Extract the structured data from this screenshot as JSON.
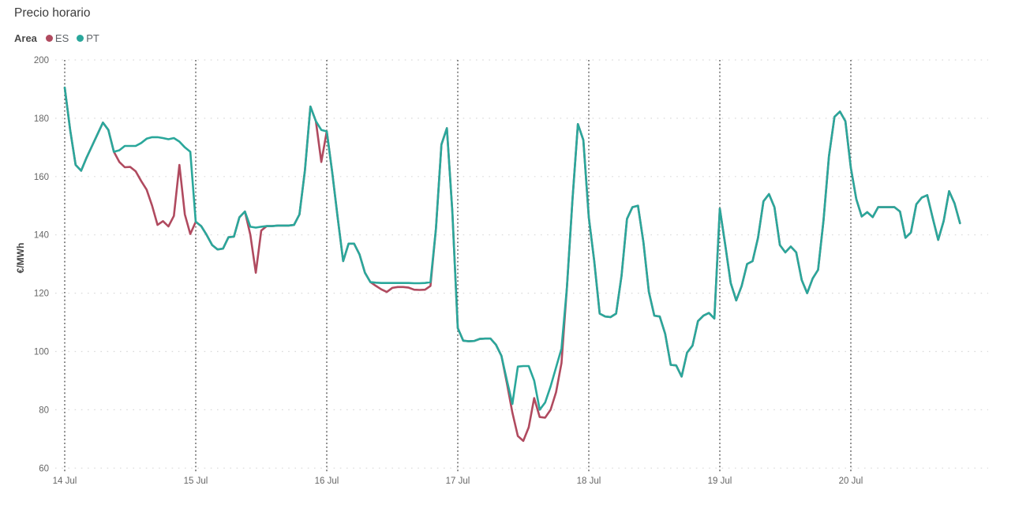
{
  "title": "Precio horario",
  "legend": {
    "label": "Area",
    "items": [
      {
        "name": "ES",
        "color": "#b04a5f"
      },
      {
        "name": "PT",
        "color": "#2aa79b"
      }
    ]
  },
  "y_axis": {
    "label": "€/MWh",
    "ticks": [
      60,
      80,
      100,
      120,
      140,
      160,
      180,
      200
    ]
  },
  "x_axis": {
    "tick_labels": [
      "14 Jul",
      "15 Jul",
      "16 Jul",
      "17 Jul",
      "18 Jul",
      "19 Jul",
      "20 Jul"
    ]
  },
  "colors": {
    "es_line": "#b04a5f",
    "pt_line": "#2aa79b",
    "h_grid": "#dadada",
    "day_line": "#454545",
    "tick_text": "#666666",
    "axis_title": "#444444"
  },
  "chart_data": {
    "type": "line",
    "title": "Precio horario",
    "xlabel": "",
    "ylabel": "€/MWh",
    "ylim": [
      60,
      200
    ],
    "grid": "dotted horizontal gridlines; dotted vertical line at each day boundary",
    "legend_position": "top-left",
    "x_unit": "hours since 14 Jul 00:00, hourly data",
    "x_day_labels": [
      "14 Jul",
      "15 Jul",
      "16 Jul",
      "17 Jul",
      "18 Jul",
      "19 Jul",
      "20 Jul"
    ],
    "series": [
      {
        "name": "ES",
        "color": "#b04a5f",
        "values": [
          190.5,
          176,
          164,
          162,
          166.5,
          170.5,
          174.5,
          178.5,
          176,
          168.5,
          165,
          163.2,
          163.3,
          161.8,
          158.5,
          155.5,
          150,
          143.4,
          144.7,
          142.9,
          146.5,
          164,
          147,
          140.3,
          144.5,
          143,
          140,
          136.5,
          135,
          135.3,
          139.2,
          139.4,
          146,
          148,
          140,
          127,
          141.5,
          143,
          143,
          143.2,
          143.2,
          143.2,
          143.4,
          147,
          162,
          184,
          179,
          165,
          175.5,
          161.5,
          146,
          131,
          137,
          137,
          133.3,
          127,
          123.8,
          122.5,
          121.3,
          120.4,
          121.8,
          122.1,
          122.1,
          121.9,
          121.2,
          121.1,
          121.2,
          122.5,
          142,
          171,
          176.6,
          148,
          108,
          103.7,
          103.5,
          103.6,
          104.3,
          104.4,
          104.4,
          102.3,
          98.5,
          89,
          79,
          71,
          69.3,
          74,
          84,
          77.5,
          77.3,
          80,
          86,
          96,
          122,
          152,
          178,
          172.5,
          146,
          131,
          113,
          112,
          111.8,
          113,
          126,
          145.5,
          149.5,
          150,
          137.5,
          120.5,
          112.3,
          112,
          106,
          95.4,
          95.2,
          91.4,
          99.6,
          102,
          110.4,
          112.3,
          113.2,
          111.3,
          149,
          136.5,
          123.5,
          117.5,
          122.5,
          130,
          131,
          139,
          151.5,
          154,
          149.5,
          136.5,
          134,
          136,
          134,
          124.5,
          120,
          125,
          128,
          145,
          167,
          180.5,
          182.3,
          179,
          163,
          152.3,
          146.3,
          147.8,
          146.1,
          149.5,
          149.5,
          149.5,
          149.5,
          148,
          139,
          140.8,
          150.5,
          152.8,
          153.6,
          145.7,
          138.3,
          144.7,
          155,
          150.8,
          144
        ]
      },
      {
        "name": "PT",
        "color": "#2aa79b",
        "values": [
          190.5,
          176,
          164,
          162,
          166.5,
          170.5,
          174.5,
          178.5,
          176,
          168.5,
          169,
          170.5,
          170.5,
          170.5,
          171.5,
          173,
          173.5,
          173.5,
          173.2,
          172.8,
          173.2,
          172,
          170,
          168.5,
          144.5,
          143,
          140,
          136.5,
          135,
          135.3,
          139.2,
          139.4,
          146,
          148,
          142.8,
          142.5,
          142.8,
          143,
          143,
          143.2,
          143.2,
          143.2,
          143.4,
          147,
          162,
          184,
          179,
          176,
          175.5,
          161.5,
          146,
          131,
          137,
          137,
          133.3,
          127,
          123.8,
          123.6,
          123.5,
          123.5,
          123.5,
          123.5,
          123.5,
          123.5,
          123.4,
          123.4,
          123.5,
          123.8,
          142,
          171,
          176.6,
          148,
          108,
          103.7,
          103.5,
          103.6,
          104.3,
          104.4,
          104.4,
          102.3,
          98.5,
          90,
          82,
          94.8,
          95,
          95,
          90,
          80,
          82.5,
          88,
          94.5,
          101,
          122,
          152,
          178,
          172.5,
          146,
          131,
          113,
          112,
          111.8,
          113,
          126,
          145.5,
          149.5,
          150,
          137.5,
          120.5,
          112.3,
          112,
          106,
          95.4,
          95.2,
          91.4,
          99.6,
          102,
          110.4,
          112.3,
          113.2,
          111.3,
          149,
          136.5,
          123.5,
          117.5,
          122.5,
          130,
          131,
          139,
          151.5,
          154,
          149.5,
          136.5,
          134,
          136,
          134,
          124.5,
          120,
          125,
          128,
          145,
          167,
          180.5,
          182.3,
          179,
          163,
          152.3,
          146.3,
          147.8,
          146.1,
          149.5,
          149.5,
          149.5,
          149.5,
          148,
          139,
          140.8,
          150.5,
          152.8,
          153.6,
          145.7,
          138.3,
          144.7,
          155,
          150.8,
          144
        ]
      }
    ]
  }
}
